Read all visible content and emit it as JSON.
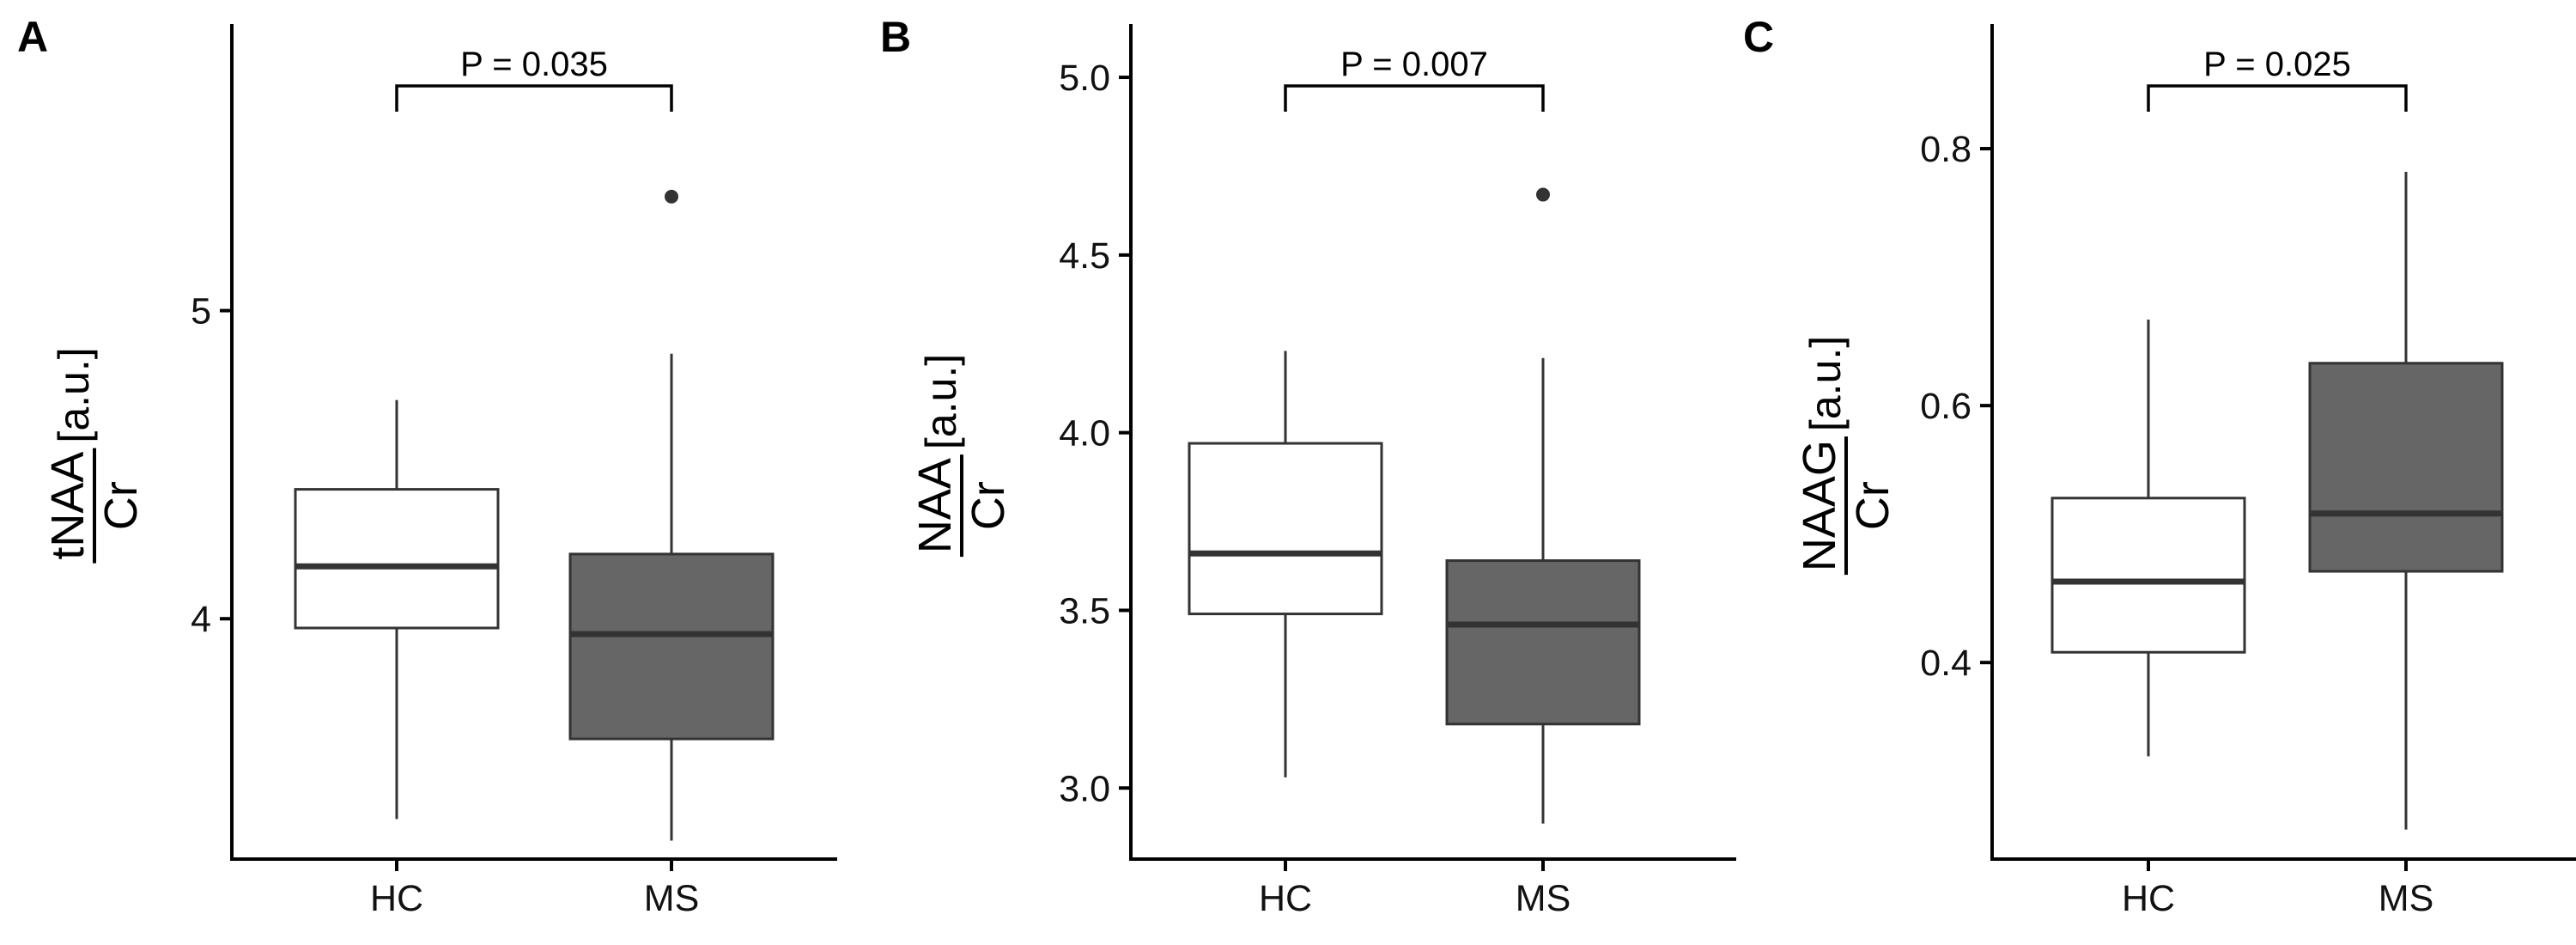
{
  "colors": {
    "hc_fill": "#ffffff",
    "ms_fill": "#666666",
    "stroke": "#333333",
    "axis": "#000000"
  },
  "chart_data": [
    {
      "panel": "A",
      "type": "box",
      "categories": [
        "HC",
        "MS"
      ],
      "ylabel": {
        "numerator": "tNAA",
        "denominator": "Cr",
        "unit": "[a.u.]"
      },
      "ylim": [
        3.22,
        5.93
      ],
      "yticks": [
        4,
        5
      ],
      "ytick_labels": [
        "4",
        "5"
      ],
      "boxes": [
        {
          "name": "HC",
          "min": 3.35,
          "q1": 3.97,
          "median": 4.17,
          "q3": 4.42,
          "max": 4.71,
          "outliers": []
        },
        {
          "name": "MS",
          "min": 3.28,
          "q1": 3.61,
          "median": 3.95,
          "q3": 4.21,
          "max": 4.86,
          "outliers": [
            5.37
          ]
        }
      ],
      "annotation": "P = 0.035"
    },
    {
      "panel": "B",
      "type": "box",
      "categories": [
        "HC",
        "MS"
      ],
      "ylabel": {
        "numerator": "NAA",
        "denominator": "Cr",
        "unit": "[a.u.]"
      },
      "ylim": [
        2.8,
        5.15
      ],
      "yticks": [
        3.0,
        3.5,
        4.0,
        4.5,
        5.0
      ],
      "ytick_labels": [
        "3.0",
        "3.5",
        "4.0",
        "4.5",
        "5.0"
      ],
      "boxes": [
        {
          "name": "HC",
          "min": 3.03,
          "q1": 3.49,
          "median": 3.66,
          "q3": 3.97,
          "max": 4.23,
          "outliers": []
        },
        {
          "name": "MS",
          "min": 2.9,
          "q1": 3.18,
          "median": 3.46,
          "q3": 3.64,
          "max": 4.21,
          "outliers": [
            4.67
          ]
        }
      ],
      "annotation": "P = 0.007"
    },
    {
      "panel": "C",
      "type": "box",
      "categories": [
        "HC",
        "MS"
      ],
      "ylabel": {
        "numerator": "NAAG",
        "denominator": "Cr",
        "unit": "[a.u.]"
      },
      "ylim": [
        0.247,
        0.897
      ],
      "yticks": [
        0.4,
        0.6,
        0.8
      ],
      "ytick_labels": [
        "0.4",
        "0.6",
        "0.8"
      ],
      "boxes": [
        {
          "name": "HC",
          "min": 0.327,
          "q1": 0.408,
          "median": 0.463,
          "q3": 0.528,
          "max": 0.667,
          "outliers": []
        },
        {
          "name": "MS",
          "min": 0.27,
          "q1": 0.471,
          "median": 0.516,
          "q3": 0.633,
          "max": 0.782,
          "outliers": []
        }
      ],
      "annotation": "P = 0.025"
    }
  ]
}
